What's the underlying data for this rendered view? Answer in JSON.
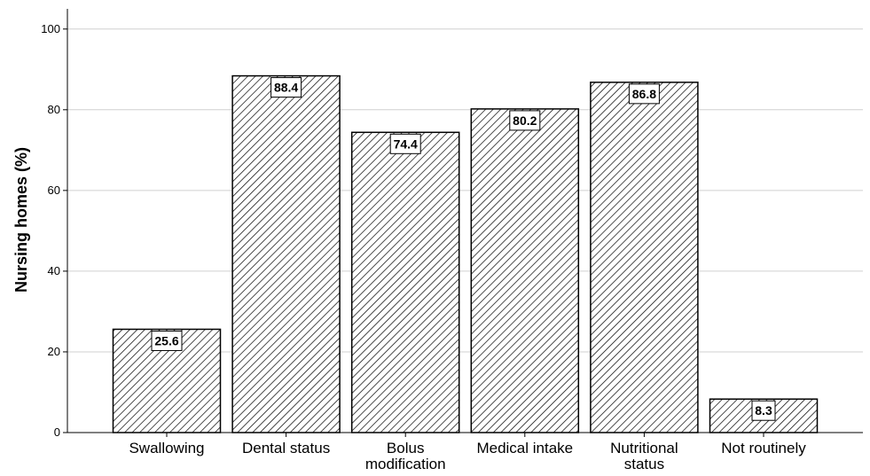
{
  "chart_data": {
    "type": "bar",
    "categories": [
      [
        "Swallowing"
      ],
      [
        "Dental status"
      ],
      [
        "Bolus",
        "modification"
      ],
      [
        "Medical intake"
      ],
      [
        "Nutritional",
        "status"
      ],
      [
        "Not routinely"
      ]
    ],
    "values": [
      25.6,
      88.4,
      74.4,
      80.2,
      86.8,
      8.3
    ],
    "data_labels": [
      "25.6",
      "88.4",
      "74.4",
      "80.2",
      "86.8",
      "8.3"
    ],
    "title": "",
    "xlabel": "",
    "ylabel": "Nursing homes (%)",
    "ylim": [
      0,
      105
    ],
    "yticks": [
      0,
      20,
      40,
      60,
      80,
      100
    ],
    "grid": true,
    "bar_fill": "hatched",
    "colors": {
      "bar_stroke": "#000000",
      "grid": "#d0d0d0",
      "axis": "#000000"
    }
  }
}
